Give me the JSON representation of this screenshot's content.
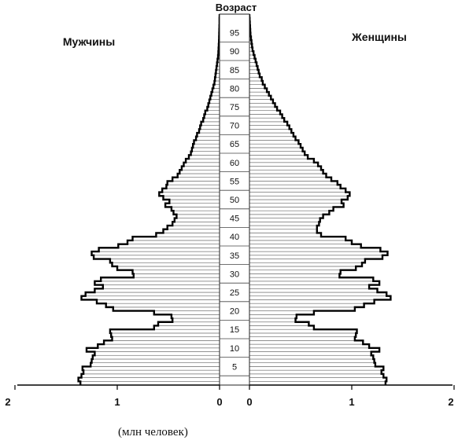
{
  "chart_data": {
    "type": "bar",
    "title": "Возраст",
    "left_label": "Мужчины",
    "right_label": "Женщины",
    "unit_label": "(млн человек)",
    "age_ticks": [
      5,
      10,
      15,
      20,
      25,
      30,
      35,
      40,
      45,
      50,
      55,
      60,
      65,
      70,
      75,
      80,
      85,
      90,
      95
    ],
    "x_ticks_left": [
      "2",
      "1",
      "0"
    ],
    "x_ticks_right": [
      "0",
      "1",
      "2"
    ],
    "xlim": [
      0,
      2
    ],
    "ylim": [
      0,
      100
    ],
    "series": [
      {
        "name": "Мужчины",
        "values": [
          1.36,
          1.38,
          1.35,
          1.33,
          1.34,
          1.26,
          1.25,
          1.24,
          1.22,
          1.3,
          1.19,
          1.13,
          1.05,
          1.06,
          1.07,
          0.64,
          0.6,
          0.46,
          0.47,
          0.64,
          1.04,
          1.11,
          1.2,
          1.35,
          1.31,
          1.22,
          1.14,
          1.22,
          1.16,
          0.84,
          0.85,
          1.0,
          1.05,
          1.07,
          1.23,
          1.25,
          1.18,
          0.99,
          0.9,
          0.85,
          0.62,
          0.55,
          0.51,
          0.46,
          0.44,
          0.42,
          0.45,
          0.47,
          0.53,
          0.49,
          0.55,
          0.59,
          0.56,
          0.52,
          0.51,
          0.46,
          0.41,
          0.39,
          0.37,
          0.35,
          0.33,
          0.3,
          0.28,
          0.27,
          0.26,
          0.25,
          0.23,
          0.22,
          0.2,
          0.19,
          0.18,
          0.16,
          0.15,
          0.14,
          0.12,
          0.11,
          0.1,
          0.09,
          0.08,
          0.07,
          0.06,
          0.05,
          0.045,
          0.04,
          0.035,
          0.03,
          0.025,
          0.02,
          0.015,
          0.012,
          0.01,
          0.008,
          0.006,
          0.005,
          0.004,
          0.003,
          0.002,
          0.001,
          0.001,
          0.0
        ]
      },
      {
        "name": "Женщины",
        "values": [
          1.33,
          1.34,
          1.31,
          1.29,
          1.31,
          1.23,
          1.22,
          1.21,
          1.19,
          1.27,
          1.17,
          1.11,
          1.03,
          1.04,
          1.05,
          0.63,
          0.58,
          0.45,
          0.46,
          0.63,
          1.03,
          1.12,
          1.22,
          1.38,
          1.34,
          1.25,
          1.17,
          1.27,
          1.21,
          0.88,
          0.89,
          1.04,
          1.1,
          1.13,
          1.3,
          1.35,
          1.28,
          1.09,
          1.0,
          0.94,
          0.7,
          0.66,
          0.66,
          0.68,
          0.69,
          0.72,
          0.78,
          0.82,
          0.92,
          0.9,
          0.96,
          0.98,
          0.94,
          0.89,
          0.86,
          0.8,
          0.75,
          0.72,
          0.7,
          0.67,
          0.63,
          0.57,
          0.54,
          0.52,
          0.5,
          0.48,
          0.45,
          0.43,
          0.41,
          0.39,
          0.37,
          0.34,
          0.32,
          0.3,
          0.27,
          0.25,
          0.23,
          0.21,
          0.19,
          0.17,
          0.15,
          0.13,
          0.12,
          0.1,
          0.09,
          0.08,
          0.07,
          0.06,
          0.05,
          0.04,
          0.03,
          0.025,
          0.02,
          0.015,
          0.01,
          0.008,
          0.006,
          0.004,
          0.002,
          0.0
        ]
      }
    ],
    "grid": false
  }
}
